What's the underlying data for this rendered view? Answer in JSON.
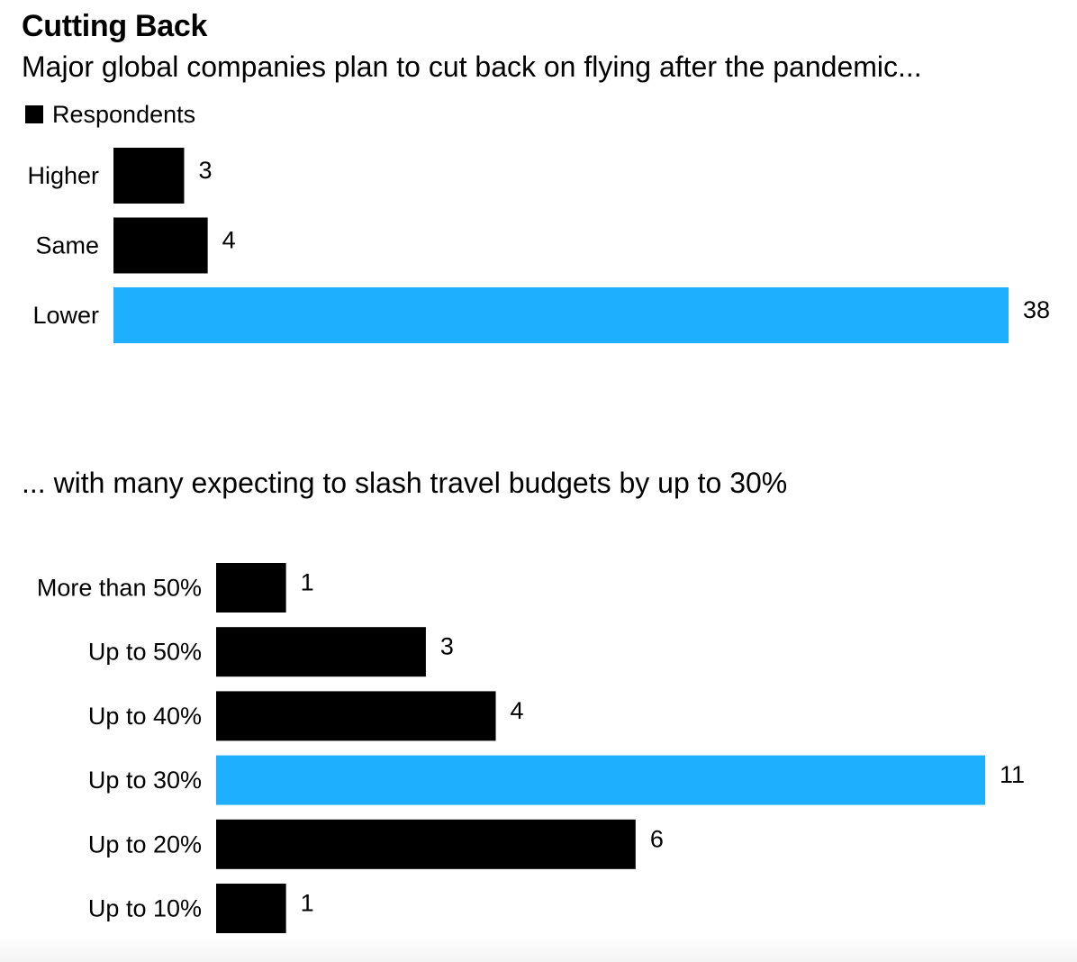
{
  "colors": {
    "default_bar": "#000000",
    "highlight_bar": "#1fafff",
    "text": "#000000",
    "background": "#ffffff"
  },
  "chart_data": [
    {
      "type": "bar",
      "orientation": "horizontal",
      "title": "Cutting Back",
      "subtitle": "Major global companies plan to cut back on flying after the pandemic...",
      "legend": [
        "Respondents"
      ],
      "legend_placement": "top-left",
      "categories": [
        "Higher",
        "Same",
        "Lower"
      ],
      "series": [
        {
          "name": "Respondents",
          "values": [
            3,
            4,
            38
          ]
        }
      ],
      "highlight_index": 2,
      "xlim": [
        0,
        38
      ],
      "grid": false
    },
    {
      "type": "bar",
      "orientation": "horizontal",
      "subtitle": "... with many expecting to slash travel budgets by up to 30%",
      "categories": [
        "More than 50%",
        "Up to 50%",
        "Up to 40%",
        "Up to 30%",
        "Up to 20%",
        "Up to 10%"
      ],
      "series": [
        {
          "name": "Respondents",
          "values": [
            1,
            3,
            4,
            11,
            6,
            1
          ]
        }
      ],
      "highlight_index": 3,
      "xlim": [
        0,
        11
      ],
      "grid": false
    }
  ]
}
